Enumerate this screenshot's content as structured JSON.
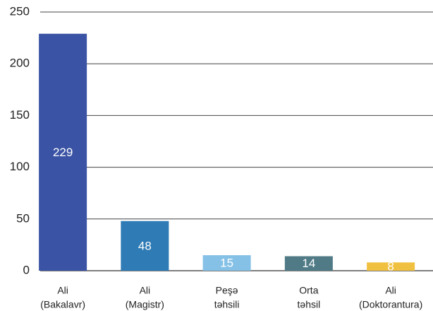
{
  "chart_data": {
    "type": "bar",
    "categories": [
      [
        "Ali",
        "(Bakalavr)"
      ],
      [
        "Ali",
        "(Magistr)"
      ],
      [
        "Peşə",
        "təhsili"
      ],
      [
        "Orta",
        "təhsil"
      ],
      [
        "Ali",
        "(Doktorantura)"
      ]
    ],
    "values": [
      229,
      48,
      15,
      14,
      8
    ],
    "colors": [
      "#3a53a4",
      "#2e7bb5",
      "#85c1e6",
      "#4f7a86",
      "#f0c040"
    ],
    "ylim": [
      0,
      250
    ],
    "yticks": [
      0,
      50,
      100,
      150,
      200,
      250
    ],
    "grid": true
  }
}
